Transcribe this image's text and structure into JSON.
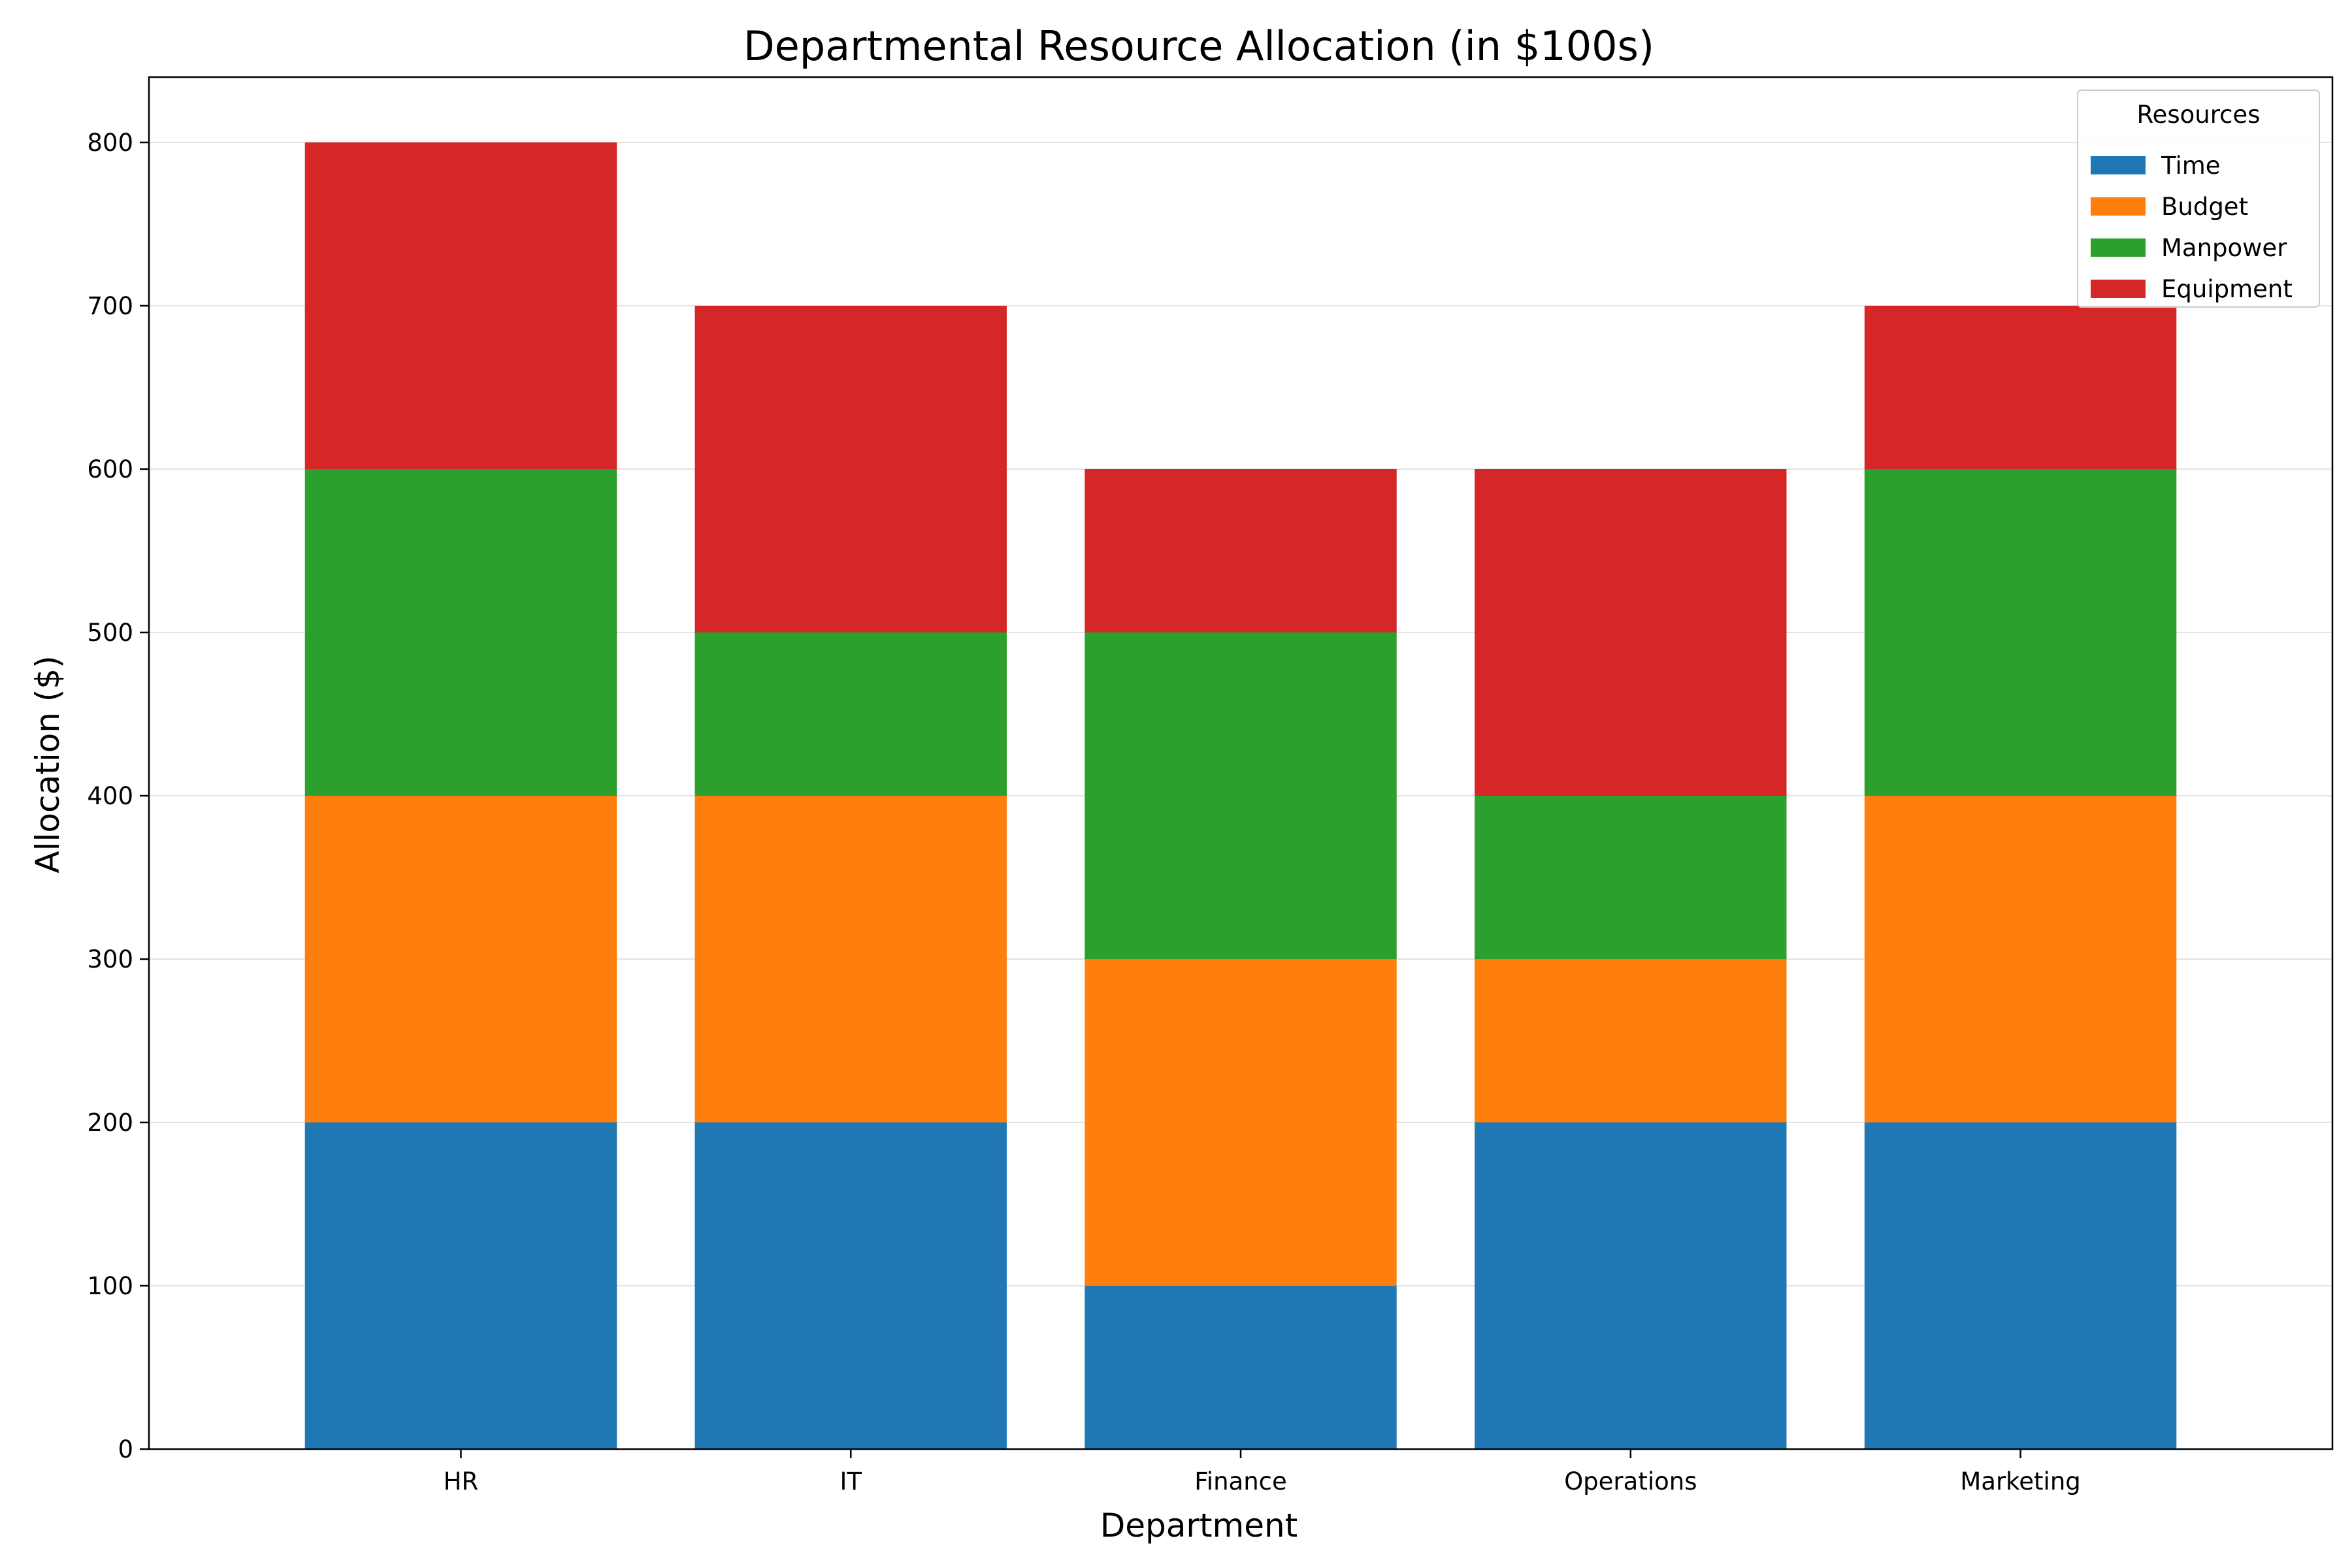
{
  "chart_data": {
    "type": "bar",
    "stacked": true,
    "title": "Departmental Resource Allocation (in $100s)",
    "xlabel": "Department",
    "ylabel": "Allocation ($)",
    "categories": [
      "HR",
      "IT",
      "Finance",
      "Operations",
      "Marketing"
    ],
    "series": [
      {
        "name": "Time",
        "color": "#1f77b4",
        "values": [
          200,
          200,
          100,
          200,
          200
        ]
      },
      {
        "name": "Budget",
        "color": "#ff7f0e",
        "values": [
          200,
          200,
          200,
          100,
          200
        ]
      },
      {
        "name": "Manpower",
        "color": "#2ca02c",
        "values": [
          200,
          100,
          200,
          100,
          200
        ]
      },
      {
        "name": "Equipment",
        "color": "#d62728",
        "values": [
          200,
          200,
          100,
          200,
          100
        ]
      }
    ],
    "ylim": [
      0,
      840
    ],
    "yticks": [
      0,
      100,
      200,
      300,
      400,
      500,
      600,
      700,
      800
    ],
    "grid": true,
    "legend": {
      "title": "Resources",
      "placement": "top-right"
    }
  }
}
